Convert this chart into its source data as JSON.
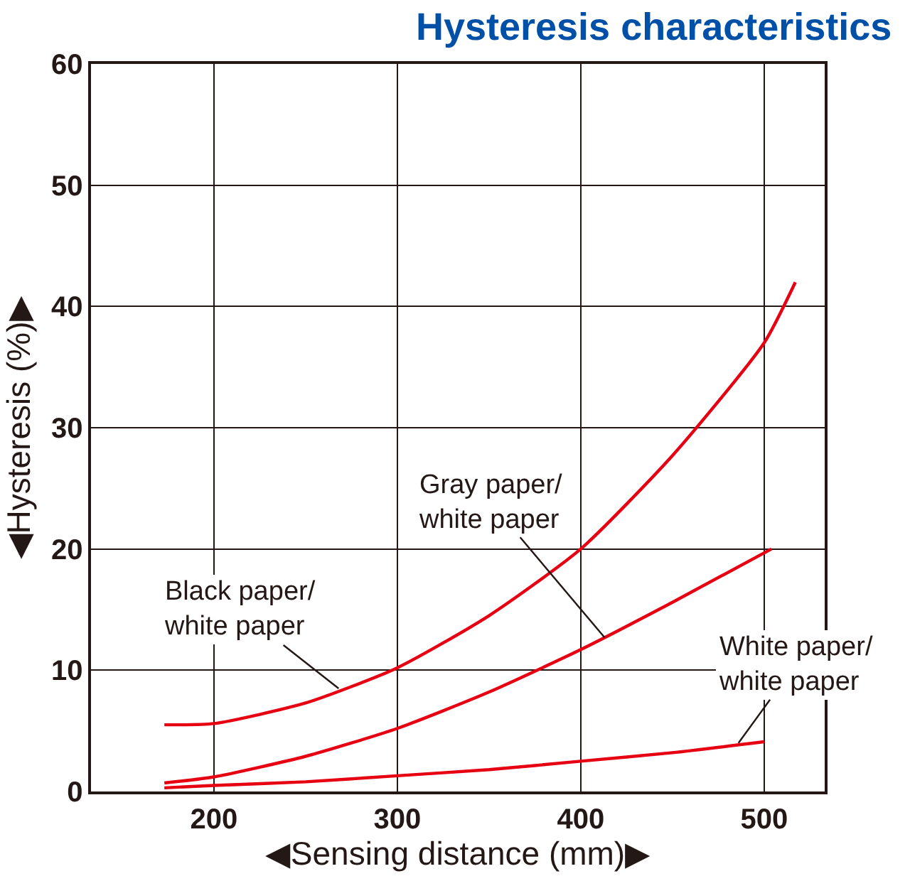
{
  "chart_data": {
    "type": "line",
    "title": "Hysteresis characteristics",
    "xlabel": "◀Sensing distance (mm)▶",
    "ylabel": "◀Hysteresis (%)▶",
    "xlim": [
      133,
      533
    ],
    "xticks": [
      200,
      300,
      400,
      500
    ],
    "ylim": [
      0,
      60
    ],
    "yticks": [
      0,
      10,
      20,
      30,
      40,
      50,
      60
    ],
    "grid": true,
    "marker": "none",
    "line_style": "solid",
    "series": [
      {
        "color": "#e60012",
        "x": [
          173,
          200,
          250,
          300,
          350,
          400,
          450,
          500,
          517
        ],
        "values": [
          5.5,
          5.6,
          7.3,
          10.2,
          14.5,
          20,
          27.7,
          37,
          42
        ]
      },
      {
        "color": "#e60012",
        "x": [
          173,
          200,
          250,
          300,
          350,
          400,
          450,
          504
        ],
        "values": [
          0.7,
          1.2,
          2.9,
          5.2,
          8.2,
          11.7,
          15.6,
          20
        ]
      },
      {
        "color": "#e60012",
        "x": [
          173,
          200,
          250,
          300,
          350,
          400,
          450,
          500
        ],
        "values": [
          0.3,
          0.5,
          0.8,
          1.3,
          1.8,
          2.5,
          3.2,
          4.1
        ]
      }
    ],
    "annotations": [
      {
        "text": "Black paper/\nwhite paper",
        "x": 268,
        "y": 8.5
      },
      {
        "text": "Gray paper/\nwhite paper",
        "x": 413,
        "y": 12.7
      },
      {
        "text": "White paper/\nwhite paper",
        "x": 486,
        "y": 4.0
      }
    ]
  }
}
